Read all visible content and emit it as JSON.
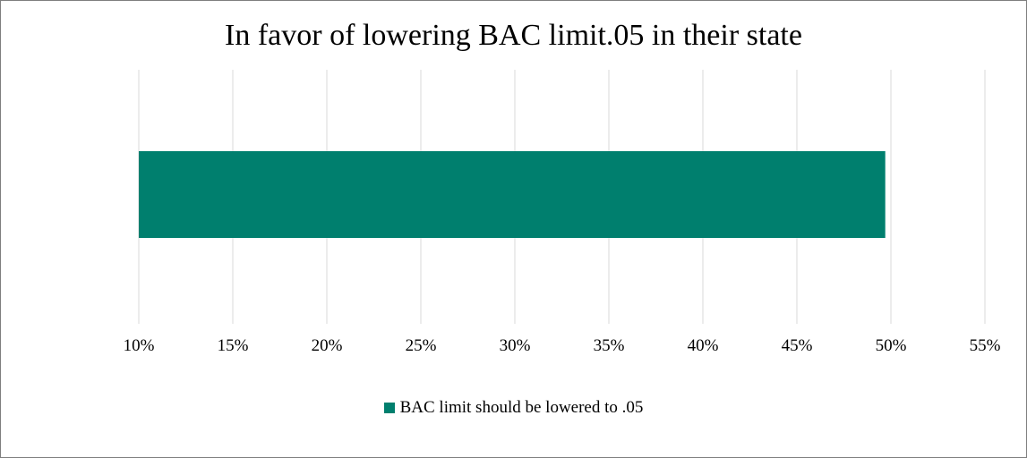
{
  "chart_data": {
    "type": "bar",
    "orientation": "horizontal",
    "title": "In favor of lowering BAC limit.05  in their state",
    "categories": [
      ""
    ],
    "series": [
      {
        "name": "BAC limit should be lowered to .05",
        "values": [
          0.497
        ],
        "color": "#007F6E"
      }
    ],
    "xlim": [
      0.1,
      0.55
    ],
    "xticks": [
      0.1,
      0.15,
      0.2,
      0.25,
      0.3,
      0.35,
      0.4,
      0.45,
      0.5,
      0.55
    ],
    "xtick_labels": [
      "10%",
      "15%",
      "20%",
      "25%",
      "30%",
      "35%",
      "40%",
      "45%",
      "50%",
      "55%"
    ],
    "xlabel": "",
    "ylabel": "",
    "grid": "vertical",
    "legend_position": "bottom"
  },
  "colors": {
    "bar": "#007F6E",
    "grid": "#d9d9d9",
    "border": "#7f7f7f"
  }
}
